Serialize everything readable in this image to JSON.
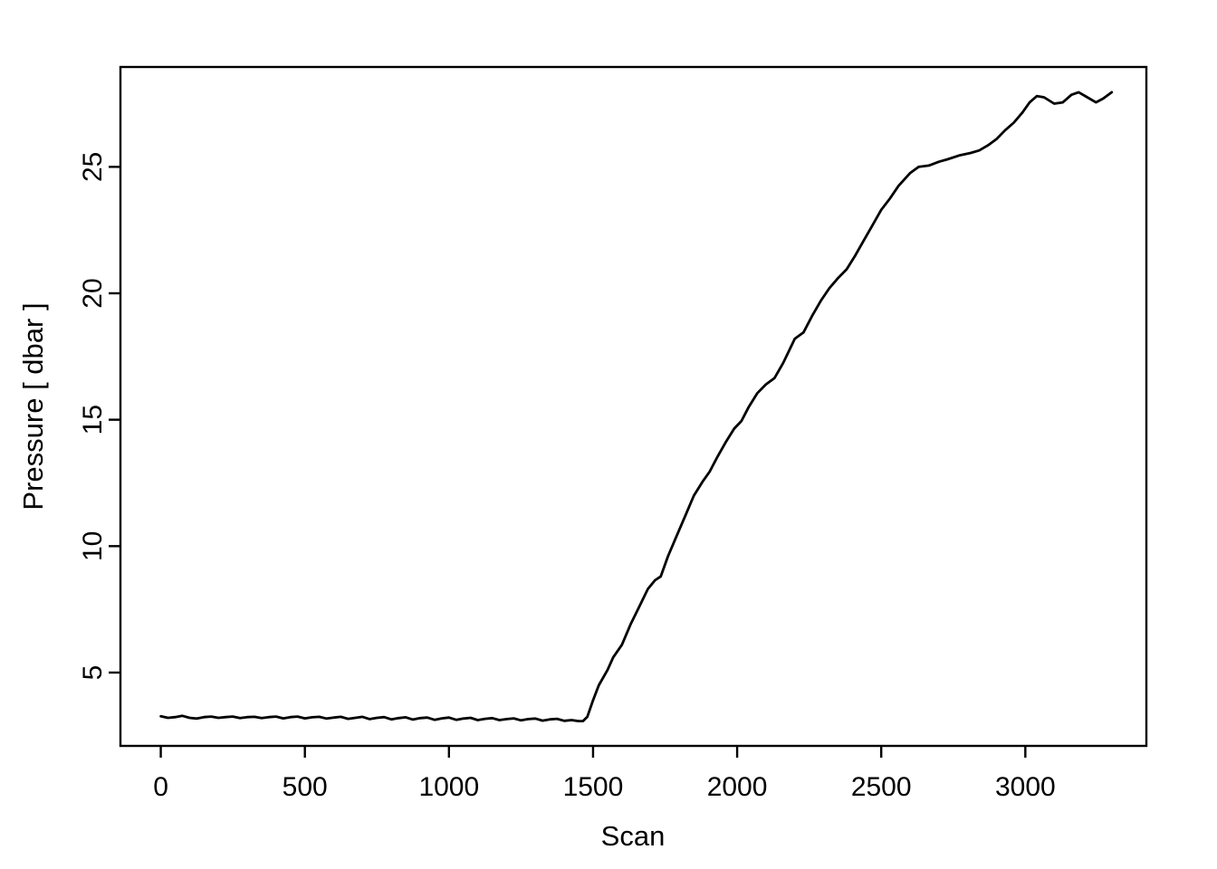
{
  "figure": {
    "background_color": "#ffffff",
    "line_color": "#000000",
    "axis_color": "#000000"
  },
  "chart_data": {
    "type": "line",
    "title": "",
    "xlabel": "Scan",
    "ylabel": "Pressure [ dbar ]",
    "xlim": [
      -140,
      3420
    ],
    "ylim": [
      2.1,
      28.95
    ],
    "x_ticks": [
      0,
      500,
      1000,
      1500,
      2000,
      2500,
      3000
    ],
    "y_ticks": [
      5,
      10,
      15,
      20,
      25
    ],
    "grid": false,
    "legend": null,
    "series": [
      {
        "name": "pressure",
        "color": "#000000",
        "points": [
          [
            0,
            3.27
          ],
          [
            25,
            3.21
          ],
          [
            50,
            3.24
          ],
          [
            75,
            3.29
          ],
          [
            100,
            3.21
          ],
          [
            125,
            3.18
          ],
          [
            150,
            3.24
          ],
          [
            175,
            3.26
          ],
          [
            200,
            3.21
          ],
          [
            225,
            3.24
          ],
          [
            250,
            3.26
          ],
          [
            275,
            3.2
          ],
          [
            300,
            3.24
          ],
          [
            325,
            3.25
          ],
          [
            350,
            3.2
          ],
          [
            375,
            3.24
          ],
          [
            400,
            3.26
          ],
          [
            425,
            3.19
          ],
          [
            450,
            3.24
          ],
          [
            475,
            3.26
          ],
          [
            500,
            3.19
          ],
          [
            525,
            3.23
          ],
          [
            550,
            3.25
          ],
          [
            575,
            3.18
          ],
          [
            600,
            3.22
          ],
          [
            625,
            3.25
          ],
          [
            650,
            3.17
          ],
          [
            675,
            3.21
          ],
          [
            700,
            3.25
          ],
          [
            725,
            3.16
          ],
          [
            750,
            3.21
          ],
          [
            775,
            3.24
          ],
          [
            800,
            3.15
          ],
          [
            825,
            3.2
          ],
          [
            850,
            3.23
          ],
          [
            875,
            3.14
          ],
          [
            900,
            3.2
          ],
          [
            925,
            3.22
          ],
          [
            950,
            3.13
          ],
          [
            975,
            3.19
          ],
          [
            1000,
            3.22
          ],
          [
            1025,
            3.13
          ],
          [
            1050,
            3.18
          ],
          [
            1075,
            3.21
          ],
          [
            1100,
            3.12
          ],
          [
            1125,
            3.17
          ],
          [
            1150,
            3.2
          ],
          [
            1175,
            3.12
          ],
          [
            1200,
            3.16
          ],
          [
            1225,
            3.19
          ],
          [
            1250,
            3.11
          ],
          [
            1275,
            3.16
          ],
          [
            1300,
            3.18
          ],
          [
            1325,
            3.1
          ],
          [
            1350,
            3.15
          ],
          [
            1375,
            3.17
          ],
          [
            1400,
            3.09
          ],
          [
            1425,
            3.12
          ],
          [
            1450,
            3.08
          ],
          [
            1465,
            3.08
          ],
          [
            1480,
            3.25
          ],
          [
            1500,
            3.9
          ],
          [
            1520,
            4.5
          ],
          [
            1550,
            5.1
          ],
          [
            1570,
            5.6
          ],
          [
            1600,
            6.1
          ],
          [
            1630,
            6.9
          ],
          [
            1660,
            7.6
          ],
          [
            1690,
            8.3
          ],
          [
            1715,
            8.65
          ],
          [
            1735,
            8.8
          ],
          [
            1760,
            9.6
          ],
          [
            1790,
            10.4
          ],
          [
            1820,
            11.2
          ],
          [
            1850,
            12.0
          ],
          [
            1880,
            12.55
          ],
          [
            1905,
            12.95
          ],
          [
            1930,
            13.5
          ],
          [
            1960,
            14.1
          ],
          [
            1990,
            14.65
          ],
          [
            2015,
            14.95
          ],
          [
            2040,
            15.5
          ],
          [
            2070,
            16.05
          ],
          [
            2100,
            16.4
          ],
          [
            2130,
            16.65
          ],
          [
            2160,
            17.25
          ],
          [
            2200,
            18.2
          ],
          [
            2230,
            18.45
          ],
          [
            2260,
            19.1
          ],
          [
            2290,
            19.7
          ],
          [
            2320,
            20.2
          ],
          [
            2350,
            20.6
          ],
          [
            2380,
            20.95
          ],
          [
            2410,
            21.5
          ],
          [
            2440,
            22.1
          ],
          [
            2470,
            22.7
          ],
          [
            2500,
            23.3
          ],
          [
            2530,
            23.75
          ],
          [
            2560,
            24.25
          ],
          [
            2600,
            24.75
          ],
          [
            2630,
            25.0
          ],
          [
            2665,
            25.05
          ],
          [
            2700,
            25.2
          ],
          [
            2730,
            25.3
          ],
          [
            2770,
            25.45
          ],
          [
            2810,
            25.55
          ],
          [
            2840,
            25.65
          ],
          [
            2870,
            25.85
          ],
          [
            2900,
            26.1
          ],
          [
            2930,
            26.45
          ],
          [
            2960,
            26.75
          ],
          [
            2990,
            27.15
          ],
          [
            3015,
            27.55
          ],
          [
            3040,
            27.8
          ],
          [
            3065,
            27.75
          ],
          [
            3100,
            27.5
          ],
          [
            3130,
            27.55
          ],
          [
            3160,
            27.85
          ],
          [
            3185,
            27.95
          ],
          [
            3215,
            27.75
          ],
          [
            3245,
            27.55
          ],
          [
            3270,
            27.7
          ],
          [
            3300,
            27.95
          ]
        ]
      }
    ]
  }
}
